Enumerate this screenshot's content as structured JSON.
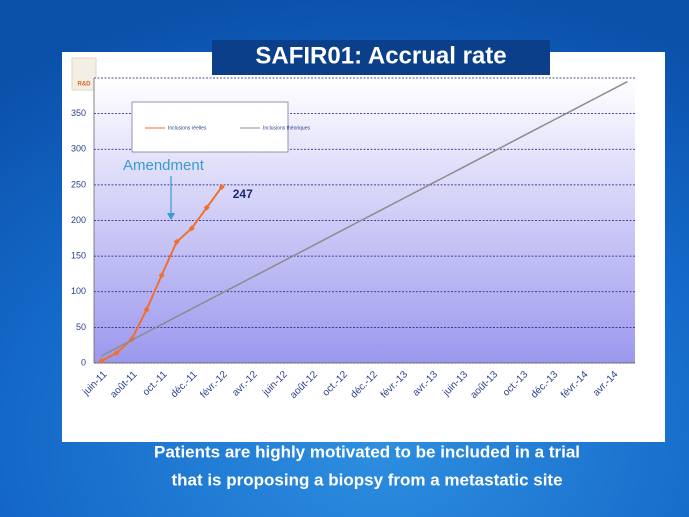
{
  "chart_data": {
    "type": "line",
    "title": "SAFIR01: Accrual rate",
    "logo": "R&D",
    "caption": [
      "Patients are highly motivated to be included in a trial",
      "that is proposing a biopsy from a metastatic site"
    ],
    "annotation": "Amendment",
    "categories": [
      "juin-11",
      null,
      "août-11",
      null,
      "oct.-11",
      null,
      "déc.-11",
      null,
      "févr.-12",
      null,
      "avr.-12",
      null,
      "juin-12",
      null,
      "août-12",
      null,
      "oct.-12",
      null,
      "déc.-12",
      null,
      "févr.-13",
      null,
      "avr.-13",
      null,
      "juin-13",
      null,
      "août-13",
      null,
      "oct.-13",
      null,
      "déc.-13",
      null,
      "févr.-14",
      null,
      "avr.-14",
      null
    ],
    "series": [
      {
        "name": "Inclusions réelles",
        "color": "#f07030",
        "values": [
          3,
          14,
          33,
          75,
          123,
          170,
          189,
          218,
          247,
          null,
          null,
          null,
          null,
          null,
          null,
          null,
          null,
          null,
          null,
          null,
          null,
          null,
          null,
          null,
          null,
          null,
          null,
          null,
          null,
          null,
          null,
          null,
          null,
          null,
          null,
          null
        ]
      },
      {
        "name": "Inclusions théoriques",
        "color": "#8c8c8c",
        "values": [
          10,
          21,
          32,
          43,
          54,
          65,
          76,
          87,
          98,
          109,
          120,
          131,
          142,
          153,
          164,
          175,
          186,
          197,
          208,
          219,
          230,
          241,
          252,
          263,
          274,
          285,
          296,
          307,
          318,
          329,
          340,
          351,
          362,
          373,
          384,
          395
        ]
      }
    ],
    "ylim": [
      0,
      400
    ],
    "yticks": [
      0,
      50,
      100,
      150,
      200,
      250,
      300,
      350
    ],
    "grid": true
  }
}
